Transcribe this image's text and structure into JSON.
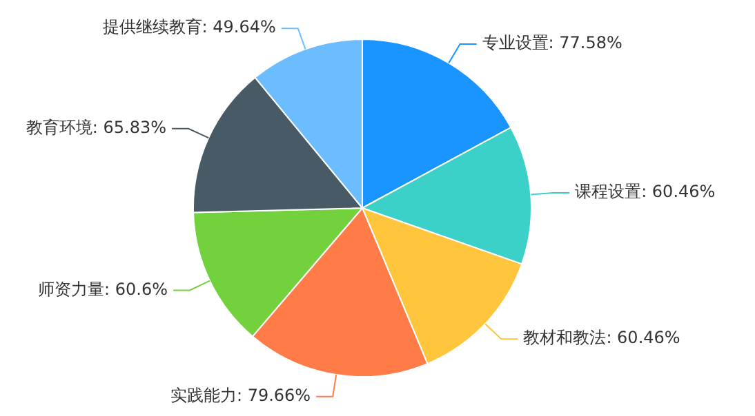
{
  "chart_data": {
    "type": "pie",
    "categories": [
      "专业设置",
      "课程设置",
      "教材和教法",
      "实践能力",
      "师资力量",
      "教育环境",
      "提供继续教育"
    ],
    "values": [
      77.58,
      60.46,
      60.46,
      79.66,
      60.6,
      65.83,
      49.64
    ],
    "value_labels": [
      "77.58%",
      "60.46%",
      "60.46%",
      "79.66%",
      "60.6%",
      "65.83%",
      "49.64%"
    ],
    "colors": [
      "#1a94ff",
      "#3bd1c8",
      "#ffc53d",
      "#ff7b48",
      "#74d13e",
      "#475a65",
      "#6cbdff"
    ],
    "legend": false
  }
}
